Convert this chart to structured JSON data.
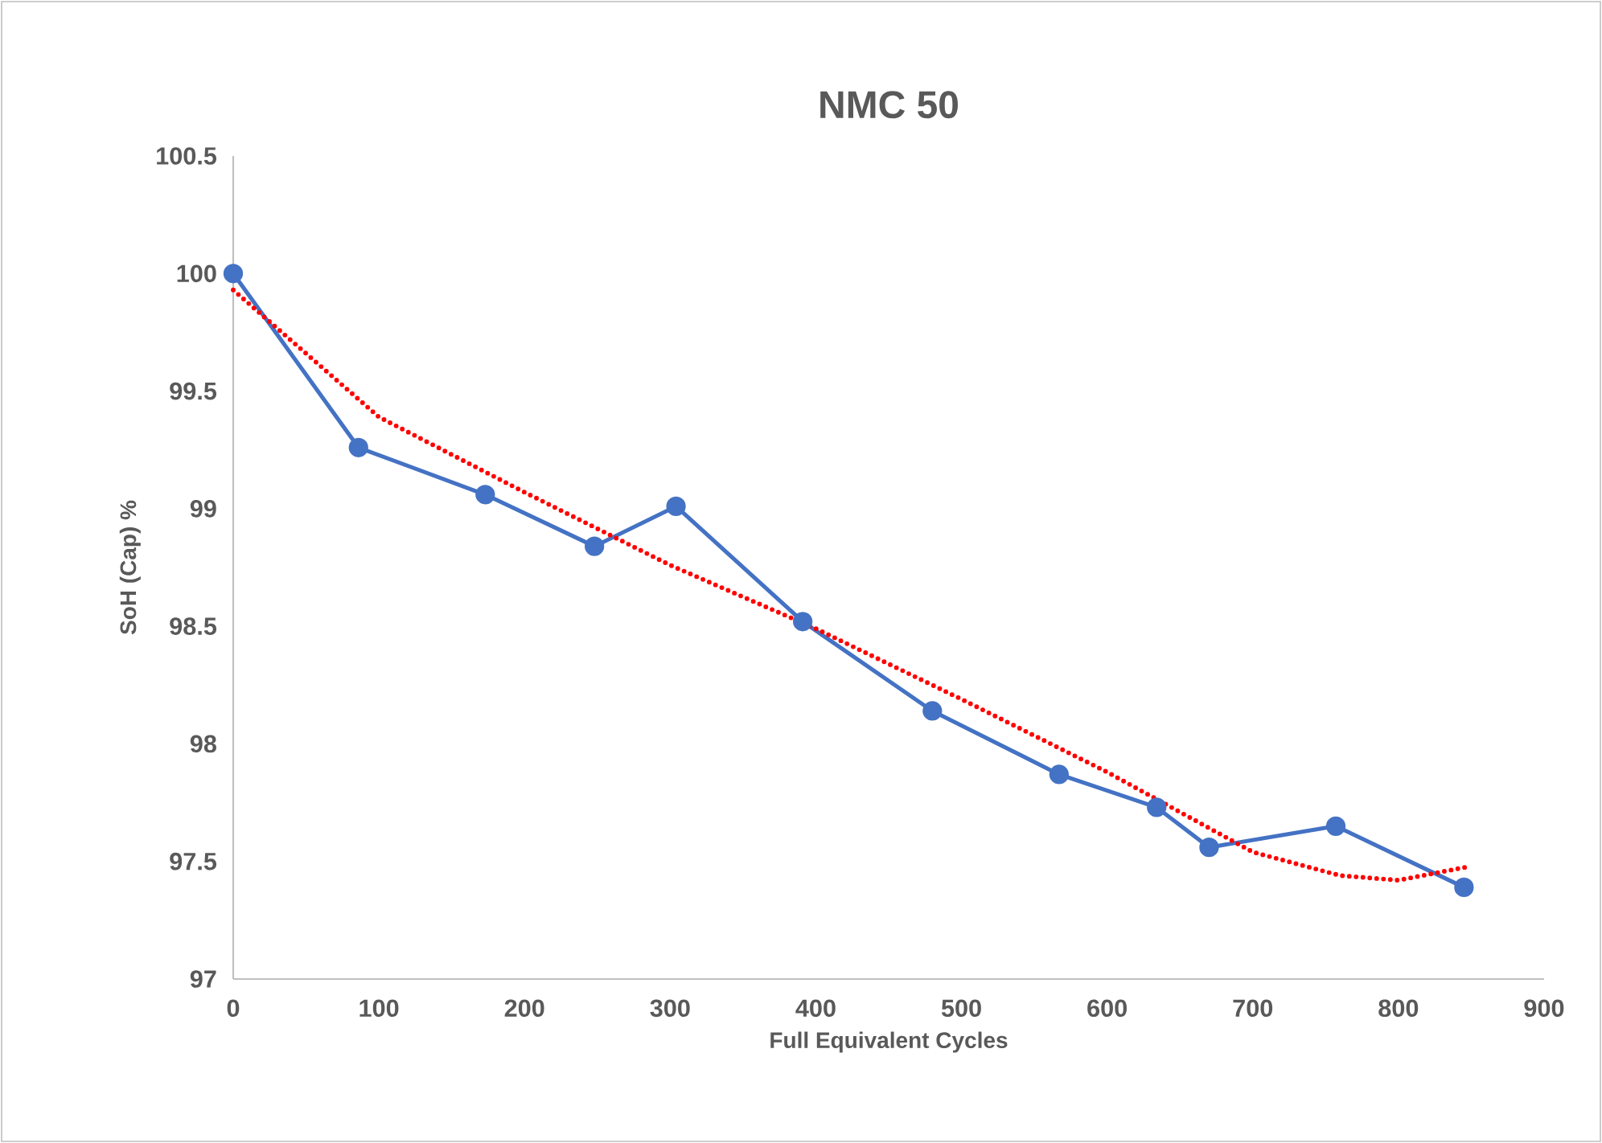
{
  "chart_data": {
    "type": "line",
    "title": "NMC 50",
    "xlabel": "Full Equivalent Cycles",
    "ylabel": "SoH (Cap) %",
    "xlim": [
      0,
      900
    ],
    "ylim": [
      97,
      100.5
    ],
    "xticks": [
      0,
      100,
      200,
      300,
      400,
      500,
      600,
      700,
      800,
      900
    ],
    "yticks": [
      97,
      97.5,
      98,
      98.5,
      99,
      99.5,
      100,
      100.5
    ],
    "grid": false,
    "series": [
      {
        "color": "#4472c4",
        "marker": "circle",
        "line_style": "solid",
        "x": [
          0,
          86,
          173,
          248,
          304,
          391,
          480,
          567,
          634,
          670,
          757,
          845
        ],
        "values": [
          100,
          99.26,
          99.06,
          98.84,
          99.01,
          98.52,
          98.14,
          97.87,
          97.73,
          97.56,
          97.65,
          97.39
        ]
      },
      {
        "color": "#ff0000",
        "marker": "none",
        "line_style": "dotted",
        "x": [
          0,
          100,
          200,
          300,
          400,
          500,
          600,
          700,
          760,
          800,
          850
        ],
        "values": [
          99.93,
          99.39,
          99.07,
          98.76,
          98.49,
          98.19,
          97.88,
          97.54,
          97.44,
          97.42,
          97.48
        ]
      }
    ]
  }
}
